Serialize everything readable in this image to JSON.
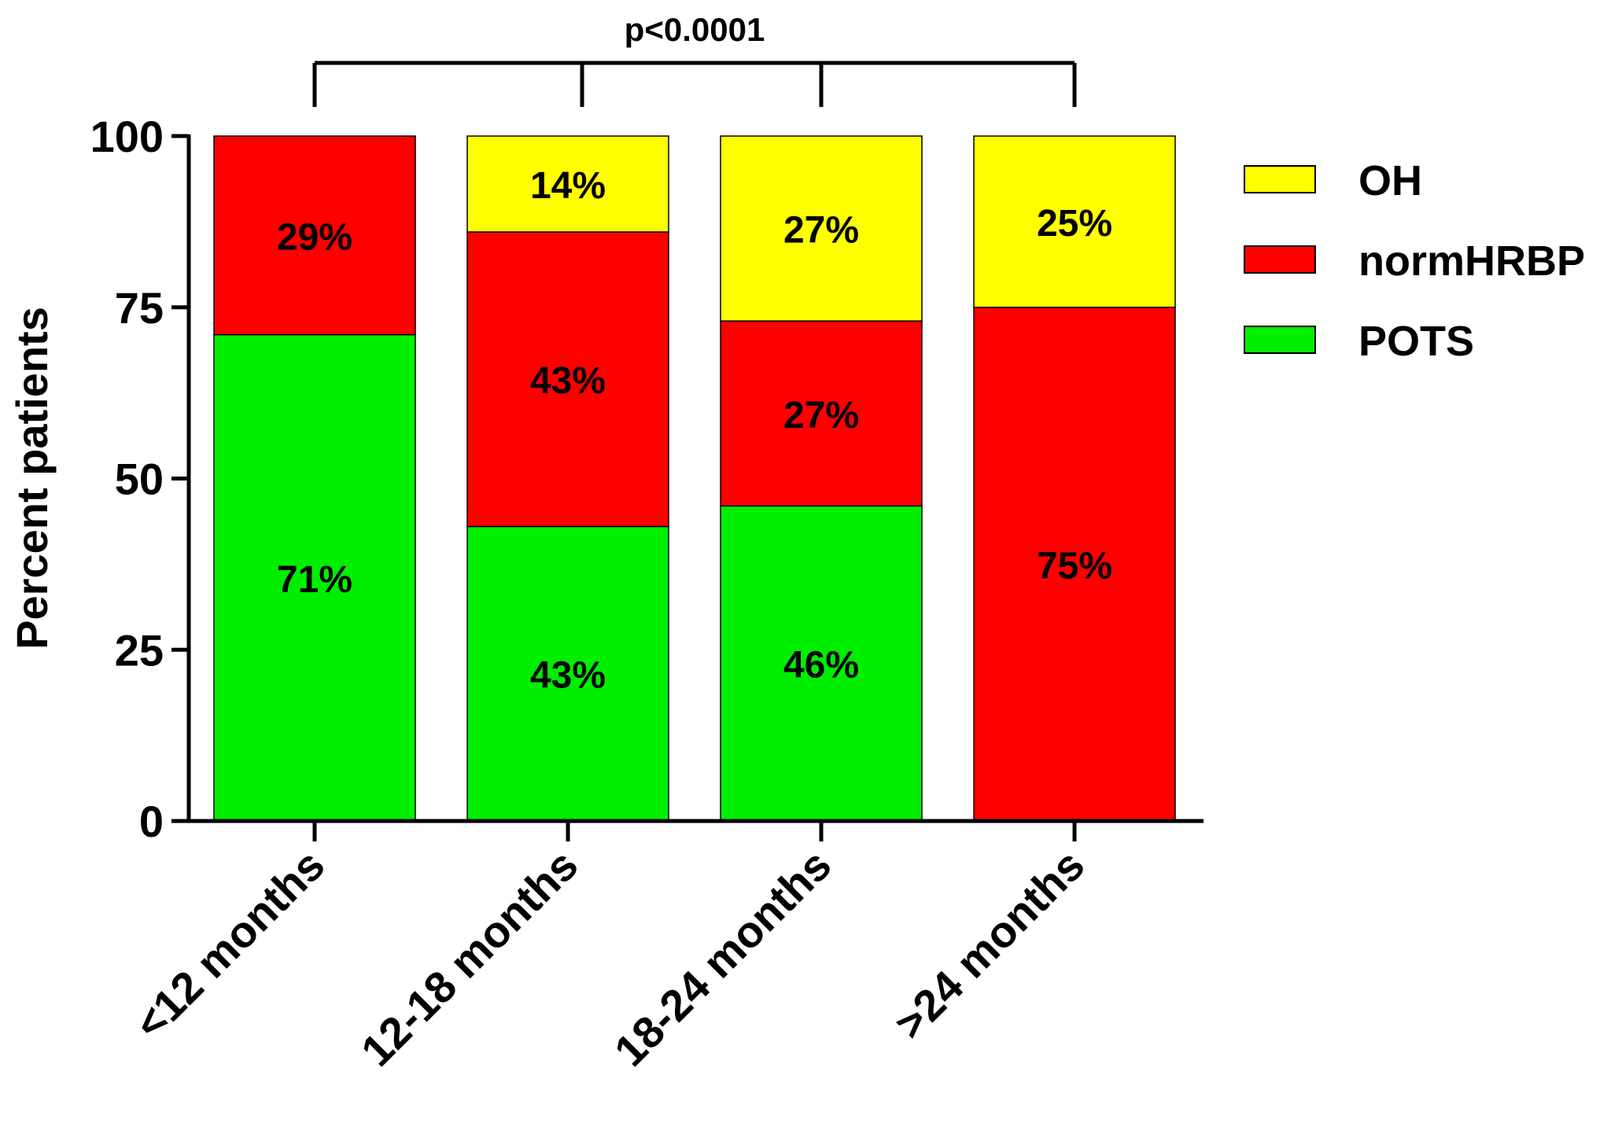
{
  "chart_data": {
    "type": "bar",
    "stacked": true,
    "title": "",
    "xlabel": "",
    "ylabel": "Percent patients",
    "ylim": [
      0,
      100
    ],
    "yticks": [
      0,
      25,
      50,
      75,
      100
    ],
    "categories": [
      "<12 months",
      "12-18 months",
      "18-24 months",
      ">24 months"
    ],
    "series": [
      {
        "name": "POTS",
        "color": "#00ee00",
        "values": [
          71,
          43,
          46,
          0
        ],
        "labels": [
          "71%",
          "43%",
          "46%",
          ""
        ]
      },
      {
        "name": "normHRBP",
        "color": "#ff0000",
        "values": [
          29,
          43,
          27,
          75
        ],
        "labels": [
          "29%",
          "43%",
          "27%",
          "75%"
        ]
      },
      {
        "name": "OH",
        "color": "#ffff00",
        "values": [
          0,
          14,
          27,
          25
        ],
        "labels": [
          "",
          "14%",
          "27%",
          "25%"
        ]
      }
    ],
    "legend_order": [
      "OH",
      "normHRBP",
      "POTS"
    ],
    "legend_position": "right",
    "annotation": "p<0.0001",
    "grid": false
  }
}
